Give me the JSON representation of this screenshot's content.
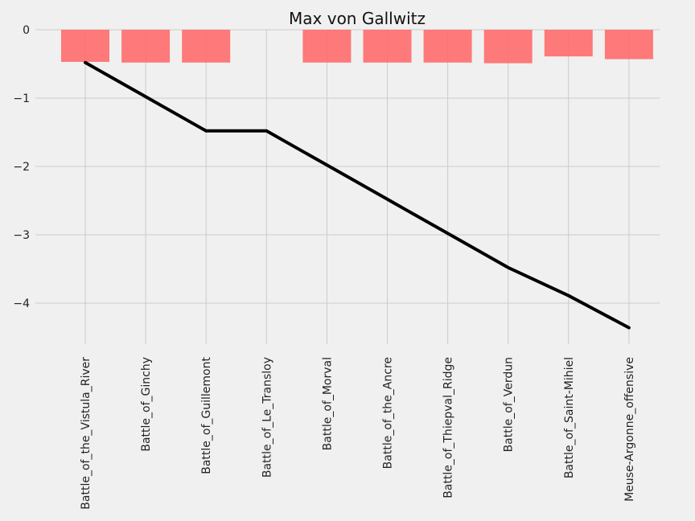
{
  "chart_data": {
    "type": "bar+line",
    "title": "Max von Gallwitz",
    "xlabel": "",
    "ylabel": "",
    "categories": [
      "Battle_of_the_Vistula_River",
      "Battle_of_Ginchy",
      "Battle_of_Guillemont",
      "Battle_of_Le_Transloy",
      "Battle_of_Morval",
      "Battle_of_the_Ancre",
      "Battle_of_Thiepval_Ridge",
      "Battle_of_Verdun",
      "Battle_of_Saint-Mihiel",
      "Meuse-Argonne_offensive"
    ],
    "series": [
      {
        "type": "bar",
        "color": "#ff6b6b",
        "values": [
          -0.47,
          -0.48,
          -0.48,
          0.0,
          -0.48,
          -0.48,
          -0.48,
          -0.49,
          -0.39,
          -0.43
        ]
      },
      {
        "type": "line",
        "color": "#000000",
        "values": [
          -0.48,
          -0.98,
          -1.48,
          -1.48,
          -1.98,
          -2.48,
          -2.98,
          -3.48,
          -3.89,
          -4.36
        ]
      }
    ],
    "ylim": [
      -4.6,
      0.0
    ],
    "yticks": [
      0,
      -1,
      -2,
      -3,
      -4
    ],
    "ytick_labels": [
      "0",
      "−1",
      "−2",
      "−3",
      "−4"
    ],
    "grid": true,
    "legend": false
  }
}
